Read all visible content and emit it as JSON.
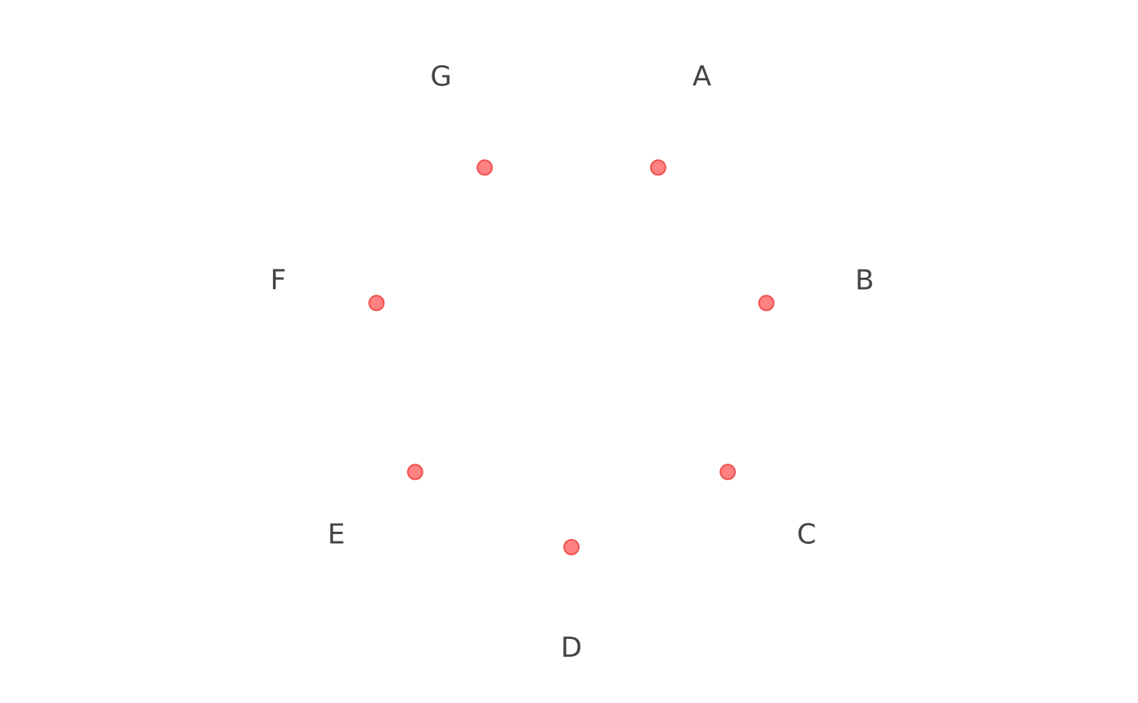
{
  "chart_data": {
    "type": "scatter",
    "coordinate_system": "polar",
    "categories": [
      "A",
      "B",
      "C",
      "D",
      "E",
      "F",
      "G"
    ],
    "values": [
      1,
      1,
      1,
      1,
      1,
      1,
      1
    ],
    "title": "",
    "grid": false,
    "legend": "none",
    "colors": {
      "point_fill": "#ff6b6b",
      "point_stroke": "#ef5350",
      "label": "#444444"
    }
  }
}
